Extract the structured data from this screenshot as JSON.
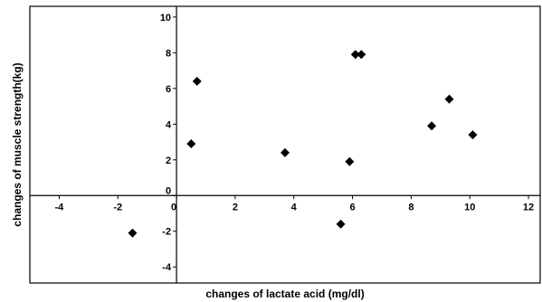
{
  "chart_data": {
    "type": "scatter",
    "xlabel": "changes of lactate acid (mg/dl)",
    "ylabel": "changes of muscle strength(kg)",
    "xlim": [
      -5,
      12.4
    ],
    "ylim": [
      -4.9,
      10.6
    ],
    "x_ticks": [
      -4,
      -2,
      0,
      2,
      4,
      6,
      8,
      10,
      12
    ],
    "y_ticks": [
      -4,
      -2,
      0,
      2,
      4,
      6,
      8,
      10
    ],
    "marker": "diamond",
    "marker_color": "#000000",
    "grid": false,
    "points": [
      {
        "x": -1.5,
        "y": -2.1
      },
      {
        "x": 0.5,
        "y": 2.9
      },
      {
        "x": 0.7,
        "y": 6.4
      },
      {
        "x": 3.7,
        "y": 2.4
      },
      {
        "x": 5.6,
        "y": -1.6
      },
      {
        "x": 5.9,
        "y": 1.9
      },
      {
        "x": 6.1,
        "y": 7.9
      },
      {
        "x": 6.3,
        "y": 7.9
      },
      {
        "x": 8.7,
        "y": 3.9
      },
      {
        "x": 9.3,
        "y": 5.4
      },
      {
        "x": 10.1,
        "y": 3.4
      }
    ]
  }
}
